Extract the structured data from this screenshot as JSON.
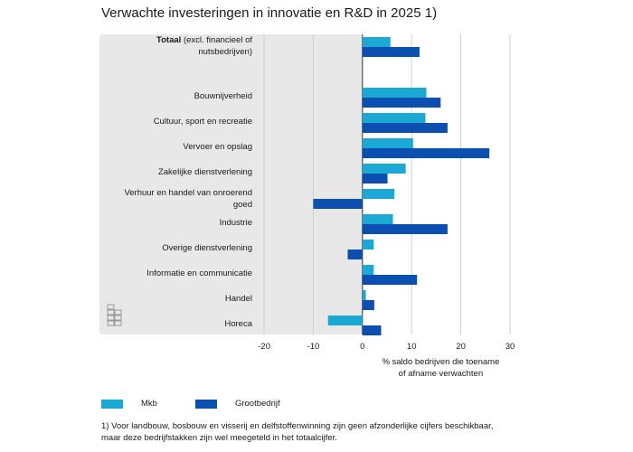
{
  "chart_data": {
    "type": "bar",
    "orientation": "horizontal",
    "title": "Verwachte investeringen in innovatie en R&D in 2025 1)",
    "categories": [
      [
        "Totaal",
        " (excl. financieel of",
        "nutsbedrijven)"
      ],
      [
        "Bouwnijverheid"
      ],
      [
        "Cultuur, sport en recreatie"
      ],
      [
        "Vervoer en opslag"
      ],
      [
        "Zakelijke dienstverlening"
      ],
      [
        "Verhuur en handel van onroerend",
        "goed"
      ],
      [
        "Industrie"
      ],
      [
        "Overige dienstverlening"
      ],
      [
        "Informatie en communicatie"
      ],
      [
        "Handel"
      ],
      [
        "Horeca"
      ]
    ],
    "series": [
      {
        "name": "Mkb",
        "color": "#1ba8d4",
        "values": [
          5.7,
          13,
          12.8,
          10.3,
          8.8,
          6.5,
          6.2,
          2.3,
          2.3,
          0.7,
          -7
        ]
      },
      {
        "name": "Grootbedrijf",
        "color": "#0b50b0",
        "values": [
          11.6,
          15.9,
          17.3,
          25.8,
          5.1,
          -10,
          17.3,
          -3,
          11.1,
          2.4,
          3.8
        ]
      }
    ],
    "x_ticks": [
      -20,
      -10,
      0,
      10,
      20,
      30
    ],
    "xlim": [
      -20,
      30
    ],
    "xlabel": [
      "% saldo bedrijven die toename",
      "of afname verwachten"
    ],
    "grid": "vertical",
    "legend_position": "bottom-left"
  },
  "footnote": "1) Voor landbouw, bosbouw en visserij en delfstoffenwinning zijn geen afzonderlijke cijfers beschikbaar, maar deze bedrijfstakken zijn wel meegeteld in het totaalcijfer.",
  "colors": {
    "panel": "#e8e8e8",
    "grid": "#cfcfcf",
    "axis": "#333333"
  }
}
